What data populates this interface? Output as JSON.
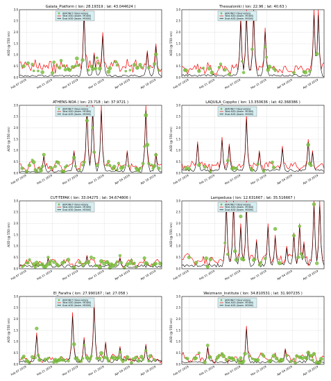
{
  "chart_data": [
    {
      "type": "line",
      "title": "Galata_Platform  ( lon: 28.19319 ; lat: 43.044624 )",
      "ylabel": "AOD (@ 550 nm)",
      "ylim": [
        0,
        3.0
      ],
      "yticks": [
        "0.0",
        "0.5",
        "1.0",
        "1.5",
        "2.0",
        "2.5",
        "3.0"
      ],
      "xticks": [
        "Feb 07 2019",
        "Feb 21 2019",
        "Mar 07 2019",
        "Mar 21 2019",
        "Apr 04 2019",
        "Apr 18 2019"
      ],
      "legend": [
        "AERONET Observations",
        "Total AOD (Assim. MODIS)",
        "Dust AOD (Assim. MODIS)"
      ],
      "legend_position": "top-left",
      "grid": true,
      "peaks": [
        [
          45,
          3.0
        ],
        [
          52,
          1.1
        ],
        [
          58,
          2.0
        ],
        [
          89,
          1.2
        ],
        [
          95,
          1.5
        ]
      ],
      "total_base": 0.55,
      "dust_base": 0.1,
      "obs_density": 0.45
    },
    {
      "type": "line",
      "title": "Thessaloniki  ( lon: 22.96 ; lat: 40.63 )",
      "ylabel": "AOD (@ 550 nm)",
      "ylim": [
        0,
        3.0
      ],
      "yticks": [
        "0.0",
        "0.5",
        "1.0",
        "1.5",
        "2.0",
        "2.5",
        "3.0"
      ],
      "xticks": [
        "Feb 07 2019",
        "Feb 21 2019",
        "Mar 07 2019",
        "Mar 21 2019",
        "Apr 04 2019",
        "Apr 18 2019"
      ],
      "legend": [
        "AERONET Observations",
        "Total AOD (Assim. MODIS)",
        "Dust AOD (Assim. MODIS)"
      ],
      "legend_position": "top-left",
      "grid": true,
      "peaks": [
        [
          41,
          2.7
        ],
        [
          45,
          3.0
        ],
        [
          50,
          3.0
        ],
        [
          58,
          2.2
        ],
        [
          92,
          3.0
        ],
        [
          95,
          3.0
        ]
      ],
      "total_base": 0.4,
      "dust_base": 0.12,
      "obs_density": 0.2
    },
    {
      "type": "line",
      "title": "ATHENS-NOA  ( lon: 23.718 ; lat: 37.9721 )",
      "ylabel": "AOD (@ 550 nm)",
      "ylim": [
        0,
        3.0
      ],
      "yticks": [
        "0.0",
        "0.5",
        "1.0",
        "1.5",
        "2.0",
        "2.5",
        "3.0"
      ],
      "xticks": [
        "Feb 07 2019",
        "Feb 21 2019",
        "Mar 07 2019",
        "Mar 21 2019",
        "Apr 04 2019",
        "Apr 18 2019"
      ],
      "legend": [
        "AERONET Observations",
        "Total AOD (Assim. MODIS)",
        "Dust AOD (Assim. MODIS)"
      ],
      "legend_position": "top-left",
      "grid": true,
      "peaks": [
        [
          17,
          0.8
        ],
        [
          38,
          1.0
        ],
        [
          47,
          3.0
        ],
        [
          51,
          3.0
        ],
        [
          57,
          3.0
        ],
        [
          75,
          1.0
        ],
        [
          88,
          3.0
        ],
        [
          95,
          0.9
        ]
      ],
      "total_base": 0.3,
      "dust_base": 0.1,
      "obs_density": 0.5
    },
    {
      "type": "line",
      "title": "LAQUILA_Coppito  ( lon: 13.350636 ; lat: 42.368386 )",
      "ylabel": "AOD (@ 550 nm)",
      "ylim": [
        0,
        3.0
      ],
      "yticks": [
        "0.0",
        "0.5",
        "1.0",
        "1.5",
        "2.0",
        "2.5",
        "3.0"
      ],
      "xticks": [
        "Feb 07 2019",
        "Feb 21 2019",
        "Mar 07 2019",
        "Mar 21 2019",
        "Apr 04 2019",
        "Apr 18 2019"
      ],
      "legend": [
        "AERONET Observations",
        "Total AOD (Assim. MODIS)",
        "Dust AOD (Assim. MODIS)"
      ],
      "legend_position": "top-left",
      "grid": true,
      "peaks": [
        [
          11,
          1.4
        ],
        [
          28,
          1.6
        ],
        [
          33,
          1.3
        ],
        [
          45,
          2.6
        ],
        [
          54,
          1.0
        ],
        [
          70,
          1.2
        ],
        [
          88,
          1.5
        ],
        [
          91,
          1.0
        ]
      ],
      "total_base": 0.35,
      "dust_base": 0.15,
      "obs_density": 0.2
    },
    {
      "type": "line",
      "title": "CUT-TEPAK  ( lon: 33.04275 ; lat: 34.674806 )",
      "ylabel": "AOD (@ 550 nm)",
      "ylim": [
        0,
        3.0
      ],
      "yticks": [
        "0.0",
        "0.5",
        "1.0",
        "1.5",
        "2.0",
        "2.5",
        "3.0"
      ],
      "xticks": [
        "Feb 07 2019",
        "Feb 21 2019",
        "Mar 07 2019",
        "Mar 21 2019",
        "Apr 04 2019",
        "Apr 18 2019"
      ],
      "legend": [
        "AERONET Observations",
        "Total AOD (Assim. MODIS)",
        "Dust AOD (Assim. MODIS)"
      ],
      "legend_position": "top-left",
      "grid": true,
      "peaks": [
        [
          20,
          0.5
        ],
        [
          47,
          0.6
        ],
        [
          70,
          0.5
        ]
      ],
      "total_base": 0.25,
      "dust_base": 0.15,
      "obs_density": 0.6
    },
    {
      "type": "line",
      "title": "Lampedusa  ( lon: 12.631667 ; lat: 35.516667 )",
      "ylabel": "AOD (@ 550 nm)",
      "ylim": [
        0,
        3.0
      ],
      "yticks": [
        "0.0",
        "0.5",
        "1.0",
        "1.5",
        "2.0",
        "2.5",
        "3.0"
      ],
      "xticks": [
        "Feb 07 2019",
        "Feb 21 2019",
        "Mar 07 2019",
        "Mar 21 2019",
        "Apr 04 2019",
        "Apr 18 2019"
      ],
      "legend": [
        "AERONET Observations",
        "Total AOD (Assim. MODIS)",
        "Dust AOD (Assim. MODIS)"
      ],
      "legend_position": "top-left",
      "grid": true,
      "peaks": [
        [
          31,
          3.0
        ],
        [
          36,
          3.0
        ],
        [
          41,
          2.0
        ],
        [
          45,
          3.0
        ],
        [
          52,
          1.3
        ],
        [
          60,
          2.0
        ],
        [
          65,
          1.5
        ],
        [
          73,
          1.0
        ],
        [
          78,
          1.6
        ],
        [
          82,
          2.0
        ],
        [
          85,
          1.2
        ],
        [
          92,
          3.0
        ],
        [
          96,
          3.0
        ]
      ],
      "total_base": 0.4,
      "dust_base": 0.2,
      "obs_density": 0.3
    },
    {
      "type": "line",
      "title": "El_Farafra  ( lon: 27.990167 ; lat: 27.058 )",
      "ylabel": "AOD (@ 550 nm)",
      "ylim": [
        0,
        3.0
      ],
      "yticks": [
        "0.0",
        "0.5",
        "1.0",
        "1.5",
        "2.0",
        "2.5",
        "3.0"
      ],
      "xticks": [
        "Feb 07 2019",
        "Feb 21 2019",
        "Mar 07 2019",
        "Mar 21 2019",
        "Apr 04 2019",
        "Apr 18 2019"
      ],
      "legend": [
        "AERONET Observations",
        "Total AOD (Assim. MODIS)",
        "Dust AOD (Assim. MODIS)"
      ],
      "legend_position": "top-left",
      "grid": true,
      "peaks": [
        [
          12,
          1.4
        ],
        [
          37,
          2.3
        ],
        [
          45,
          1.2
        ],
        [
          52,
          2.8
        ],
        [
          60,
          1.0
        ],
        [
          70,
          0.8
        ],
        [
          88,
          0.9
        ]
      ],
      "total_base": 0.25,
      "dust_base": 0.2,
      "obs_density": 0.6
    },
    {
      "type": "line",
      "title": "Weizmann_Institute  ( lon: 34.810531 ; lat: 31.907235 )",
      "ylabel": "AOD (@ 550 nm)",
      "ylim": [
        0,
        3.0
      ],
      "yticks": [
        "0.0",
        "0.5",
        "1.0",
        "1.5",
        "2.0",
        "2.5",
        "3.0"
      ],
      "xticks": [
        "Feb 07 2019",
        "Feb 21 2019",
        "Mar 07 2019",
        "Mar 21 2019",
        "Apr 04 2019",
        "Apr 18 2019"
      ],
      "legend": [
        "AERONET Observations",
        "Total AOD (Assim. MODIS)",
        "Dust AOD (Assim. MODIS)"
      ],
      "legend_position": "top-left",
      "grid": true,
      "peaks": [
        [
          45,
          1.7
        ],
        [
          18,
          0.8
        ],
        [
          72,
          0.7
        ],
        [
          88,
          0.6
        ]
      ],
      "total_base": 0.3,
      "dust_base": 0.15,
      "obs_density": 0.5
    }
  ],
  "colors": {
    "total": "#ff0000",
    "dust": "#000000",
    "obs_fill": "#7fc241",
    "obs_edge": "#4d9a1a",
    "legend_bg": "#d6eff2",
    "grid": "#b0b0b0"
  }
}
